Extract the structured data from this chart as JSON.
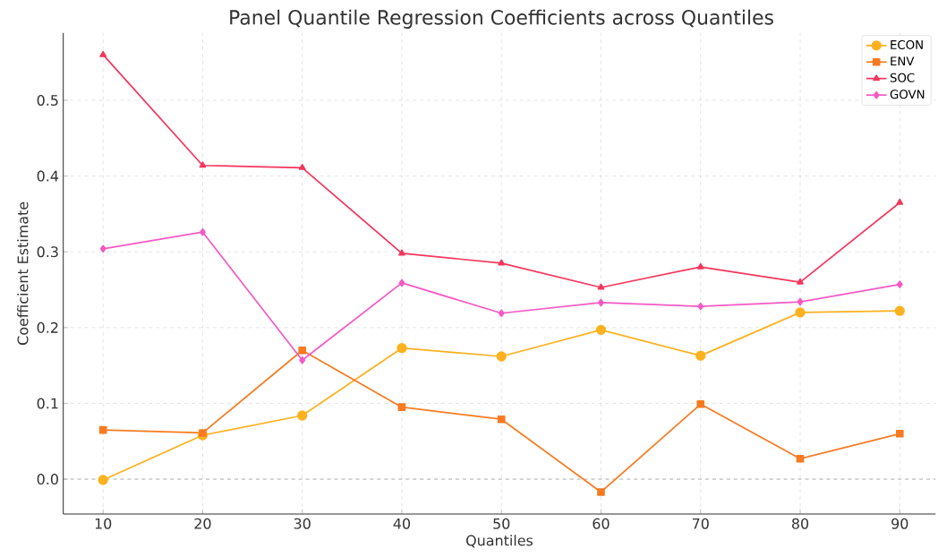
{
  "chart_data": {
    "type": "line",
    "title": "Panel Quantile Regression Coefficients across Quantiles",
    "xlabel": "Quantiles",
    "ylabel": "Coefficient Estimate",
    "x": [
      10,
      20,
      30,
      40,
      50,
      60,
      70,
      80,
      90
    ],
    "series": [
      {
        "name": "ECON",
        "color": "#fdb11e",
        "marker": "circle",
        "values": [
          -0.001,
          0.058,
          0.084,
          0.173,
          0.162,
          0.197,
          0.163,
          0.22,
          0.222
        ]
      },
      {
        "name": "ENV",
        "color": "#f97a1f",
        "marker": "square",
        "values": [
          0.065,
          0.061,
          0.17,
          0.095,
          0.079,
          -0.017,
          0.099,
          0.027,
          0.06
        ]
      },
      {
        "name": "SOC",
        "color": "#f5365c",
        "marker": "triangle",
        "values": [
          0.56,
          0.414,
          0.411,
          0.298,
          0.285,
          0.253,
          0.28,
          0.26,
          0.365
        ]
      },
      {
        "name": "GOVN",
        "color": "#f659c4",
        "marker": "diamond",
        "values": [
          0.304,
          0.326,
          0.157,
          0.259,
          0.219,
          0.233,
          0.228,
          0.234,
          0.257
        ]
      }
    ],
    "xlim": [
      6,
      93.6
    ],
    "ylim": [
      -0.046,
      0.589
    ],
    "xticks": [
      10,
      20,
      30,
      40,
      50,
      60,
      70,
      80,
      90
    ],
    "yticks": [
      {
        "value": 0,
        "label": "0.0"
      },
      0.1,
      0.2,
      0.3,
      0.4,
      0.5
    ],
    "ref_lines": [
      {
        "axis": "y",
        "value": 0,
        "color": "#888888",
        "line_style": "dashed"
      }
    ],
    "grid": true,
    "legend": "top right",
    "line_style": "solid"
  }
}
